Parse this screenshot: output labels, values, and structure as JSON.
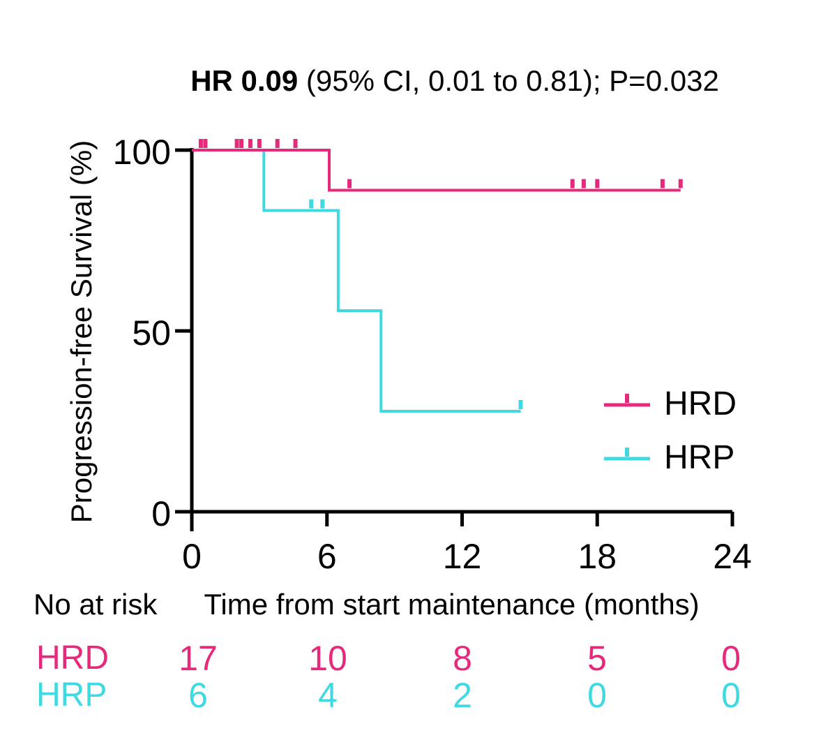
{
  "title": {
    "bold": "HR 0.09",
    "rest": " (95% CI, 0.01 to 0.81); P=0.032"
  },
  "axes": {
    "y_label": "Progression-free Survival (%)",
    "x_label": "Time from start maintenance (months)"
  },
  "legend": {
    "entries": [
      "HRD",
      "HRP"
    ]
  },
  "risk_table": {
    "header": "No at risk",
    "rows": [
      {
        "label": "HRD",
        "values": [
          "17",
          "10",
          "8",
          "5",
          "0"
        ]
      },
      {
        "label": "HRP",
        "values": [
          "6",
          "4",
          "2",
          "0",
          "0"
        ]
      }
    ]
  },
  "colors": {
    "hrd_pink": "#E7297C",
    "hrp_cyan": "#3FDAE1",
    "axis_black": "#000000"
  },
  "chart_data": {
    "type": "line",
    "subtype": "kaplan-meier-step",
    "title": "HR 0.09 (95% CI, 0.01 to 0.81); P=0.032",
    "xlabel": "Time from start maintenance (months)",
    "ylabel": "Progression-free Survival (%)",
    "xlim": [
      0,
      24
    ],
    "ylim": [
      0,
      100
    ],
    "x_ticks": [
      0,
      6,
      12,
      18,
      24
    ],
    "y_ticks": [
      100,
      50,
      0
    ],
    "grid": false,
    "legend_position": "right-middle",
    "axis_color": "#000000",
    "series": [
      {
        "name": "HRD",
        "color": "#E7297C",
        "steps": [
          [
            0,
            100
          ],
          [
            6.1,
            100
          ],
          [
            6.1,
            88.9
          ],
          [
            21.7,
            88.9
          ]
        ],
        "censor_marks": [
          [
            0.4,
            100
          ],
          [
            0.6,
            100
          ],
          [
            2.0,
            100
          ],
          [
            2.2,
            100
          ],
          [
            2.6,
            100
          ],
          [
            3.0,
            100
          ],
          [
            3.8,
            100
          ],
          [
            4.6,
            100
          ],
          [
            7.0,
            88.9
          ],
          [
            16.9,
            88.9
          ],
          [
            17.4,
            88.9
          ],
          [
            18.0,
            88.9
          ],
          [
            20.9,
            88.9
          ],
          [
            21.7,
            88.9
          ]
        ]
      },
      {
        "name": "HRP",
        "color": "#3FDAE1",
        "steps": [
          [
            0,
            100
          ],
          [
            3.2,
            100
          ],
          [
            3.2,
            83.3
          ],
          [
            6.5,
            83.3
          ],
          [
            6.5,
            55.6
          ],
          [
            8.4,
            55.6
          ],
          [
            8.4,
            27.8
          ],
          [
            14.6,
            27.8
          ]
        ],
        "censor_marks": [
          [
            5.3,
            83.3
          ],
          [
            5.8,
            83.3
          ],
          [
            14.6,
            27.8
          ]
        ]
      }
    ],
    "number_at_risk": {
      "times": [
        0,
        6,
        12,
        18,
        24
      ],
      "HRD": [
        17,
        10,
        8,
        5,
        0
      ],
      "HRP": [
        6,
        4,
        2,
        0,
        0
      ]
    }
  }
}
